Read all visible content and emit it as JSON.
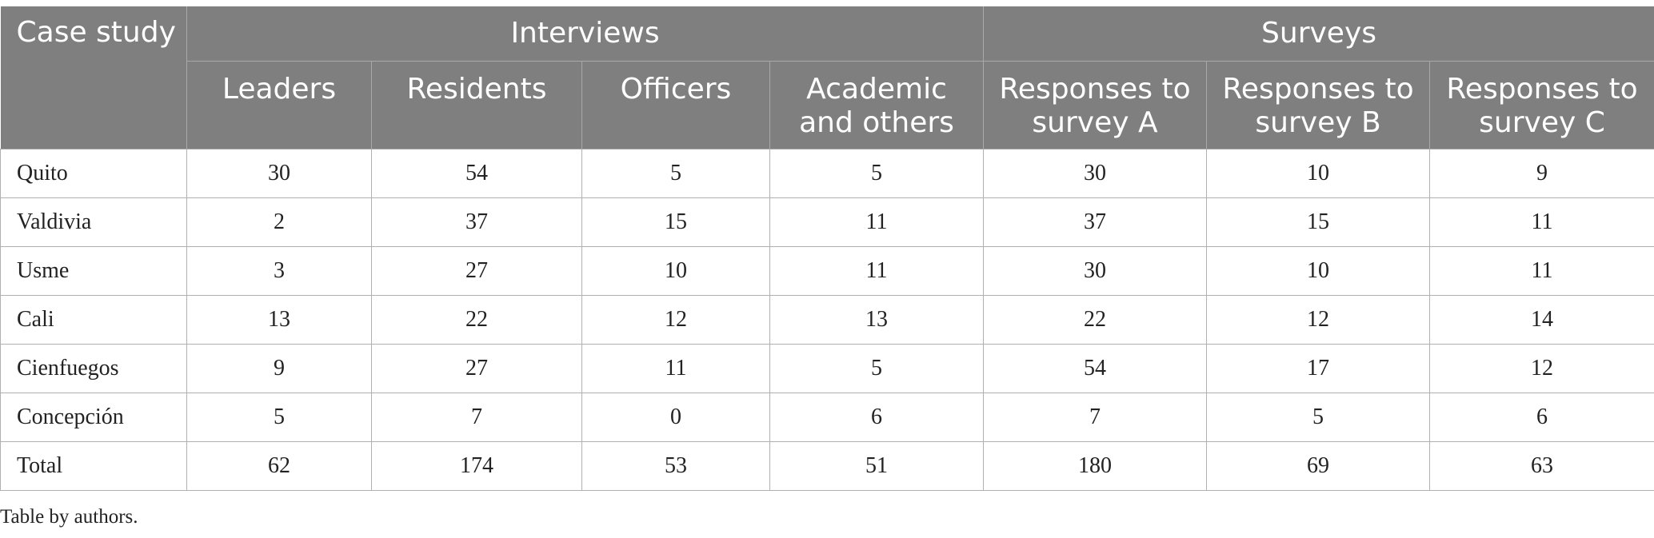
{
  "header": {
    "case_study": "Case study",
    "groups": {
      "interviews": "Interviews",
      "surveys": "Surveys"
    },
    "columns": {
      "leaders": "Leaders",
      "residents": "Residents",
      "officers": "Officers",
      "academic_line1": "Academic",
      "academic_line2": "and others",
      "survey_a_line1": "Responses to",
      "survey_a_line2": "survey A",
      "survey_b_line1": "Responses to",
      "survey_b_line2": "survey B",
      "survey_c_line1": "Responses to",
      "survey_c_line2": "survey C"
    }
  },
  "rows": [
    {
      "case": "Quito",
      "leaders": "30",
      "residents": "54",
      "officers": "5",
      "academic": "5",
      "survey_a": "30",
      "survey_b": "10",
      "survey_c": "9"
    },
    {
      "case": "Valdivia",
      "leaders": "2",
      "residents": "37",
      "officers": "15",
      "academic": "11",
      "survey_a": "37",
      "survey_b": "15",
      "survey_c": "11"
    },
    {
      "case": "Usme",
      "leaders": "3",
      "residents": "27",
      "officers": "10",
      "academic": "11",
      "survey_a": "30",
      "survey_b": "10",
      "survey_c": "11"
    },
    {
      "case": "Cali",
      "leaders": "13",
      "residents": "22",
      "officers": "12",
      "academic": "13",
      "survey_a": "22",
      "survey_b": "12",
      "survey_c": "14"
    },
    {
      "case": "Cienfuegos",
      "leaders": "9",
      "residents": "27",
      "officers": "11",
      "academic": "5",
      "survey_a": "54",
      "survey_b": "17",
      "survey_c": "12"
    },
    {
      "case": "Concepción",
      "leaders": "5",
      "residents": "7",
      "officers": "0",
      "academic": "6",
      "survey_a": "7",
      "survey_b": "5",
      "survey_c": "6"
    },
    {
      "case": "Total",
      "leaders": "62",
      "residents": "174",
      "officers": "53",
      "academic": "51",
      "survey_a": "180",
      "survey_b": "69",
      "survey_c": "63"
    }
  ],
  "footnote": "Table by authors."
}
